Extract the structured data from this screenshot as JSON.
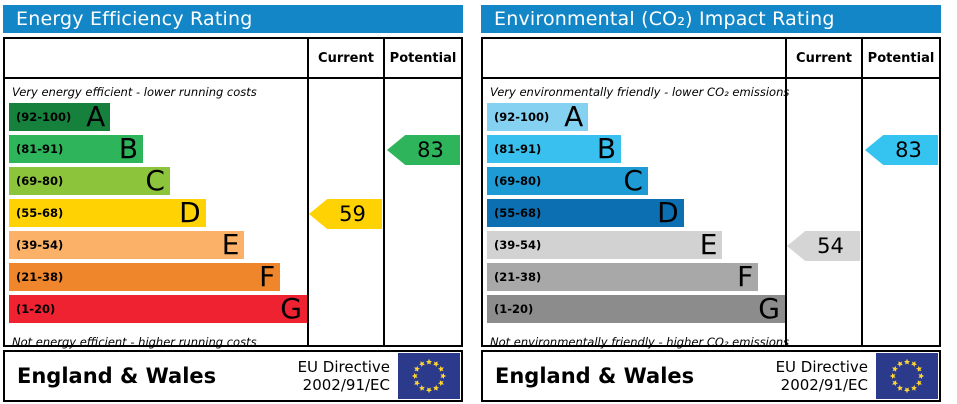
{
  "colors": {
    "title_bg": "#1286c6",
    "eu_flag_bg": "#2c3a8c",
    "eu_star": "#ffd733"
  },
  "panels": [
    {
      "title": "Energy Efficiency Rating",
      "header": {
        "current": "Current",
        "potential": "Potential"
      },
      "top_label": "Very energy efficient - lower running costs",
      "bottom_label": "Not energy efficient - higher running costs",
      "bands": [
        {
          "range": "(92-100)",
          "letter": "A",
          "color": "#15813d",
          "width_pct": 34
        },
        {
          "range": "(81-91)",
          "letter": "B",
          "color": "#2eb55c",
          "width_pct": 45
        },
        {
          "range": "(69-80)",
          "letter": "C",
          "color": "#8cc43c",
          "width_pct": 54
        },
        {
          "range": "(55-68)",
          "letter": "D",
          "color": "#ffd203",
          "width_pct": 66
        },
        {
          "range": "(39-54)",
          "letter": "E",
          "color": "#fbb168",
          "width_pct": 79
        },
        {
          "range": "(21-38)",
          "letter": "F",
          "color": "#f0862b",
          "width_pct": 91
        },
        {
          "range": "(1-20)",
          "letter": "G",
          "color": "#ee2230",
          "width_pct": 100
        }
      ],
      "current": {
        "value": "59",
        "color": "#ffd203"
      },
      "potential": {
        "value": "83",
        "color": "#2eb55c"
      },
      "footer": {
        "region": "England & Wales",
        "directive_line1": "EU Directive",
        "directive_line2": "2002/91/EC"
      }
    },
    {
      "title": "Environmental (CO₂) Impact Rating",
      "header": {
        "current": "Current",
        "potential": "Potential"
      },
      "top_label": "Very environmentally friendly - lower CO₂ emissions",
      "bottom_label": "Not environmentally friendly - higher CO₂ emissions",
      "bands": [
        {
          "range": "(92-100)",
          "letter": "A",
          "color": "#85d1f2",
          "width_pct": 34
        },
        {
          "range": "(81-91)",
          "letter": "B",
          "color": "#39c0ef",
          "width_pct": 45
        },
        {
          "range": "(69-80)",
          "letter": "C",
          "color": "#1e9ad4",
          "width_pct": 54
        },
        {
          "range": "(55-68)",
          "letter": "D",
          "color": "#0c6fb2",
          "width_pct": 66
        },
        {
          "range": "(39-54)",
          "letter": "E",
          "color": "#d2d2d2",
          "width_pct": 79
        },
        {
          "range": "(21-38)",
          "letter": "F",
          "color": "#a8a8a8",
          "width_pct": 91
        },
        {
          "range": "(1-20)",
          "letter": "G",
          "color": "#8c8c8c",
          "width_pct": 100
        }
      ],
      "current": {
        "value": "54",
        "color": "#d5d5d5"
      },
      "potential": {
        "value": "83",
        "color": "#35c4f0"
      },
      "footer": {
        "region": "England & Wales",
        "directive_line1": "EU Directive",
        "directive_line2": "2002/91/EC"
      }
    }
  ],
  "chart_data": [
    {
      "type": "bar",
      "title": "Energy Efficiency Rating",
      "categories": [
        "A (92-100)",
        "B (81-91)",
        "C (69-80)",
        "D (55-68)",
        "E (39-54)",
        "F (21-38)",
        "G (1-20)"
      ],
      "values": [
        34,
        45,
        54,
        66,
        79,
        91,
        100
      ],
      "ylabel": "",
      "xlabel": "",
      "current": 59,
      "current_band": "D",
      "potential": 83,
      "potential_band": "B",
      "annotations": [
        "Very energy efficient - lower running costs",
        "Not energy efficient - higher running costs"
      ]
    },
    {
      "type": "bar",
      "title": "Environmental (CO₂) Impact Rating",
      "categories": [
        "A (92-100)",
        "B (81-91)",
        "C (69-80)",
        "D (55-68)",
        "E (39-54)",
        "F (21-38)",
        "G (1-20)"
      ],
      "values": [
        34,
        45,
        54,
        66,
        79,
        91,
        100
      ],
      "ylabel": "",
      "xlabel": "",
      "current": 54,
      "current_band": "E",
      "potential": 83,
      "potential_band": "B",
      "annotations": [
        "Very environmentally friendly - lower CO₂ emissions",
        "Not environmentally friendly - higher CO₂ emissions"
      ]
    }
  ]
}
